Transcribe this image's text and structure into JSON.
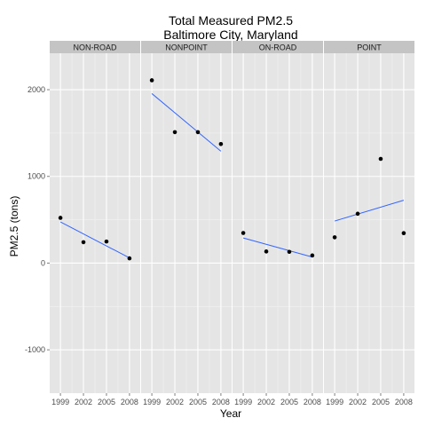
{
  "chart_data": {
    "type": "scatter",
    "title": "Total Measured PM2.5",
    "subtitle": "Baltimore City, Maryland",
    "xlabel": "Year",
    "ylabel": "PM2.5 (tons)",
    "x_ticks": [
      1999,
      2002,
      2005,
      2008
    ],
    "y_ticks": [
      -1000,
      0,
      1000,
      2000
    ],
    "ylim": [
      -1500,
      2420
    ],
    "xlim": [
      1997.6,
      2009.4
    ],
    "grid": true,
    "legend": "none",
    "colors": {
      "panel_background": "#e5e5e5",
      "strip_background": "#c4c4c4",
      "grid_line": "#ffffff",
      "points": "#000000",
      "fit_line": "#3366ff"
    },
    "panels": [
      {
        "label": "NON-ROAD",
        "points": [
          {
            "x": 1999,
            "y": 522
          },
          {
            "x": 2002,
            "y": 241
          },
          {
            "x": 2005,
            "y": 249
          },
          {
            "x": 2008,
            "y": 55
          }
        ],
        "fit": [
          {
            "x": 1999,
            "y": 475
          },
          {
            "x": 2008,
            "y": 60
          }
        ]
      },
      {
        "label": "NONPOINT",
        "points": [
          {
            "x": 1999,
            "y": 2108
          },
          {
            "x": 2002,
            "y": 1510
          },
          {
            "x": 2005,
            "y": 1510
          },
          {
            "x": 2008,
            "y": 1373
          }
        ],
        "fit": [
          {
            "x": 1999,
            "y": 1955
          },
          {
            "x": 2008,
            "y": 1290
          }
        ]
      },
      {
        "label": "ON-ROAD",
        "points": [
          {
            "x": 1999,
            "y": 347
          },
          {
            "x": 2002,
            "y": 134
          },
          {
            "x": 2005,
            "y": 130
          },
          {
            "x": 2008,
            "y": 88
          }
        ],
        "fit": [
          {
            "x": 1999,
            "y": 290
          },
          {
            "x": 2008,
            "y": 70
          }
        ]
      },
      {
        "label": "POINT",
        "points": [
          {
            "x": 1999,
            "y": 297
          },
          {
            "x": 2002,
            "y": 569
          },
          {
            "x": 2005,
            "y": 1202
          },
          {
            "x": 2008,
            "y": 345
          }
        ],
        "fit": [
          {
            "x": 1999,
            "y": 485
          },
          {
            "x": 2008,
            "y": 725
          }
        ]
      }
    ]
  }
}
